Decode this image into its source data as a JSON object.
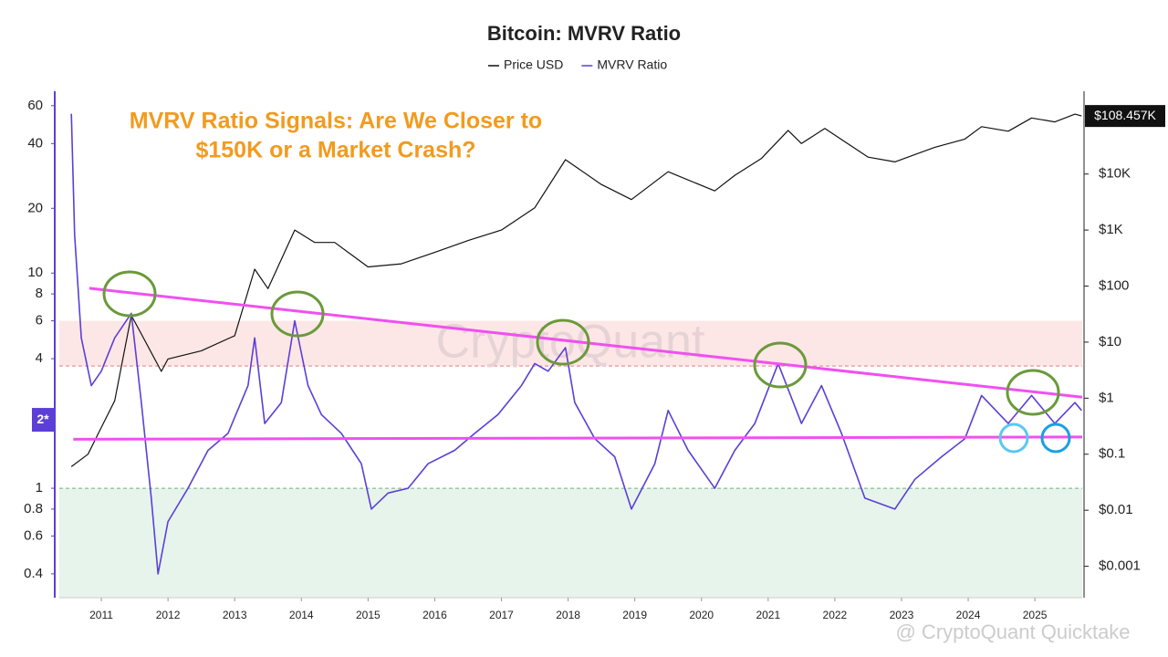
{
  "chart_data": {
    "type": "line",
    "title": "Bitcoin: MVRV Ratio",
    "annotation_lines": [
      "MVRV Ratio Signals: Are We Closer to",
      "$150K or a Market Crash?"
    ],
    "watermark": "CryptoQuant",
    "footer": "@ CryptoQuant Quicktake",
    "log_scale": true,
    "xlim": [
      2010.37,
      2025.71
    ],
    "xticks": [
      2011,
      2012,
      2013,
      2014,
      2015,
      2016,
      2017,
      2018,
      2019,
      2020,
      2021,
      2022,
      2023,
      2024,
      2025
    ],
    "ylim": [
      0.31,
      70
    ],
    "yticks": [
      0.4,
      0.6,
      0.8,
      1,
      4,
      6,
      8,
      10,
      20,
      40,
      60
    ],
    "y2lim": [
      0.000275,
      300000
    ],
    "y2ticks": [
      {
        "value": 0.001,
        "label": "$0.001"
      },
      {
        "value": 0.01,
        "label": "$0.01"
      },
      {
        "value": 0.1,
        "label": "$0.1"
      },
      {
        "value": 1,
        "label": "$1"
      },
      {
        "value": 10,
        "label": "$10"
      },
      {
        "value": 100,
        "label": "$100"
      },
      {
        "value": 1000,
        "label": "$1K"
      },
      {
        "value": 10000,
        "label": "$10K"
      }
    ],
    "series": [
      {
        "name": "Price USD",
        "color": "#111111",
        "axis": "y2",
        "x": [
          2010.55,
          2010.8,
          2011.0,
          2011.2,
          2011.45,
          2011.6,
          2011.9,
          2012.0,
          2012.5,
          2013.0,
          2013.3,
          2013.5,
          2013.9,
          2014.2,
          2014.5,
          2015.0,
          2015.5,
          2016.0,
          2016.5,
          2017.0,
          2017.5,
          2017.96,
          2018.5,
          2018.95,
          2019.5,
          2020.2,
          2020.5,
          2020.9,
          2021.3,
          2021.5,
          2021.85,
          2022.5,
          2022.9,
          2023.5,
          2023.95,
          2024.2,
          2024.6,
          2024.95,
          2025.3,
          2025.6,
          2025.7
        ],
        "values": [
          0.06,
          0.1,
          0.3,
          0.9,
          30,
          14,
          3,
          5,
          7,
          13,
          200,
          90,
          1000,
          600,
          600,
          220,
          250,
          400,
          650,
          1000,
          2500,
          18000,
          6500,
          3500,
          11000,
          5000,
          9500,
          19000,
          60000,
          35000,
          65000,
          20000,
          16500,
          30000,
          42000,
          70000,
          58000,
          100000,
          85000,
          117000,
          108457
        ]
      },
      {
        "name": "MVRV Ratio",
        "color": "#5b3fd6",
        "x": [
          2010.55,
          2010.6,
          2010.7,
          2010.85,
          2011.0,
          2011.2,
          2011.45,
          2011.6,
          2011.75,
          2011.85,
          2012.0,
          2012.3,
          2012.6,
          2012.9,
          2013.2,
          2013.3,
          2013.45,
          2013.7,
          2013.9,
          2014.1,
          2014.3,
          2014.6,
          2014.9,
          2015.05,
          2015.3,
          2015.6,
          2015.9,
          2016.3,
          2016.6,
          2016.95,
          2017.3,
          2017.5,
          2017.7,
          2017.96,
          2018.1,
          2018.4,
          2018.7,
          2018.95,
          2019.3,
          2019.5,
          2019.8,
          2020.2,
          2020.5,
          2020.8,
          2021.15,
          2021.5,
          2021.8,
          2022.1,
          2022.45,
          2022.9,
          2023.2,
          2023.6,
          2023.95,
          2024.2,
          2024.6,
          2024.95,
          2025.3,
          2025.6,
          2025.7
        ],
        "values": [
          55,
          15,
          5,
          3,
          3.5,
          5,
          6.5,
          2.5,
          0.9,
          0.4,
          0.7,
          1.0,
          1.5,
          1.8,
          3,
          5,
          2,
          2.5,
          6,
          3,
          2.2,
          1.8,
          1.3,
          0.8,
          0.95,
          1.0,
          1.3,
          1.5,
          1.8,
          2.2,
          3,
          3.8,
          3.5,
          4.5,
          2.5,
          1.7,
          1.4,
          0.8,
          1.3,
          2.3,
          1.5,
          1.0,
          1.5,
          2.0,
          3.8,
          2.0,
          3.0,
          1.8,
          0.9,
          0.8,
          1.1,
          1.4,
          1.7,
          2.7,
          2.0,
          2.7,
          2.0,
          2.5,
          2.3
        ]
      }
    ],
    "last_price_label": {
      "value": 108457,
      "label": "$108.457K"
    },
    "mvrv_label": {
      "value": 2.08,
      "label": "2*"
    },
    "zones": [
      {
        "from": 3.7,
        "to": 6,
        "color": "#fde6e6"
      },
      {
        "from": 0.31,
        "to": 1,
        "color": "#e6f4ec"
      }
    ],
    "trend_lines": [
      {
        "x": [
          2010.82,
          2025.71
        ],
        "values": [
          8.5,
          2.65
        ],
        "color": "#f050f0"
      },
      {
        "x": [
          2010.58,
          2025.71
        ],
        "values": [
          1.69,
          1.73
        ],
        "color": "#f050f0"
      }
    ]
  }
}
